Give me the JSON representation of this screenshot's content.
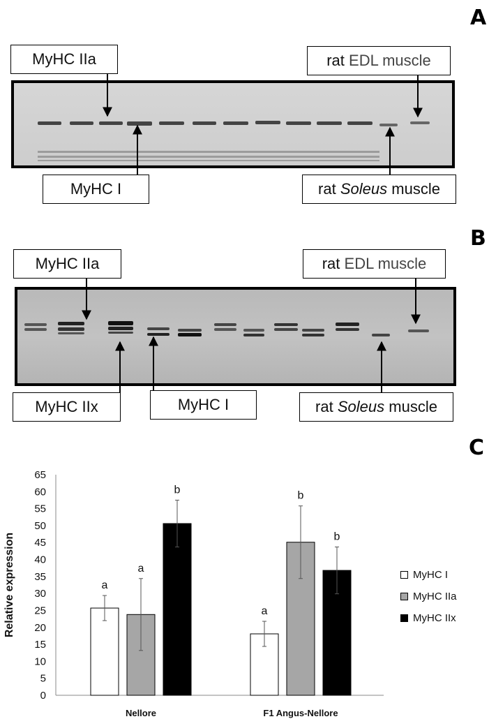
{
  "panels": {
    "a": {
      "letter": "A",
      "labels": {
        "myhc_iia": "MyHC IIa",
        "myhc_i": "MyHC I",
        "rat_edl_prefix": "rat",
        "rat_edl_suffix": "EDL muscle",
        "rat_soleus_prefix": "rat",
        "rat_soleus_italic": "Soleus",
        "rat_soleus_suffix": "muscle"
      }
    },
    "b": {
      "letter": "B",
      "labels": {
        "myhc_iia": "MyHC IIa",
        "myhc_iix": "MyHC IIx",
        "myhc_i": "MyHC I",
        "rat_edl_prefix": "rat",
        "rat_edl_suffix": "EDL muscle",
        "rat_soleus_prefix": "rat",
        "rat_soleus_italic": "Soleus",
        "rat_soleus_suffix": "muscle"
      }
    },
    "c": {
      "letter": "C"
    }
  },
  "colors": {
    "myhc_i": "#ffffff",
    "myhc_iia": "#a6a6a6",
    "myhc_iix": "#000000"
  },
  "chart_data": {
    "type": "bar",
    "categories": [
      "Nellore",
      "F1 Angus-Nellore"
    ],
    "ylabel": "Relative expression",
    "ylim": [
      0,
      65
    ],
    "yticks": [
      0,
      5,
      10,
      15,
      20,
      25,
      30,
      35,
      40,
      45,
      50,
      55,
      60,
      65
    ],
    "legend_position": "right",
    "series": [
      {
        "name": "MyHC I",
        "values": [
          25.7,
          18.1
        ],
        "errors": [
          3.7,
          3.7
        ],
        "letters": [
          "a",
          "a"
        ],
        "color": "#ffffff"
      },
      {
        "name": "MyHC IIa",
        "values": [
          23.8,
          45.1
        ],
        "errors": [
          10.6,
          10.7
        ],
        "letters": [
          "a",
          "b"
        ],
        "color": "#a6a6a6"
      },
      {
        "name": "MyHC IIx",
        "values": [
          50.6,
          36.8
        ],
        "errors": [
          6.9,
          6.9
        ],
        "letters": [
          "b",
          "b"
        ],
        "color": "#000000"
      }
    ]
  }
}
